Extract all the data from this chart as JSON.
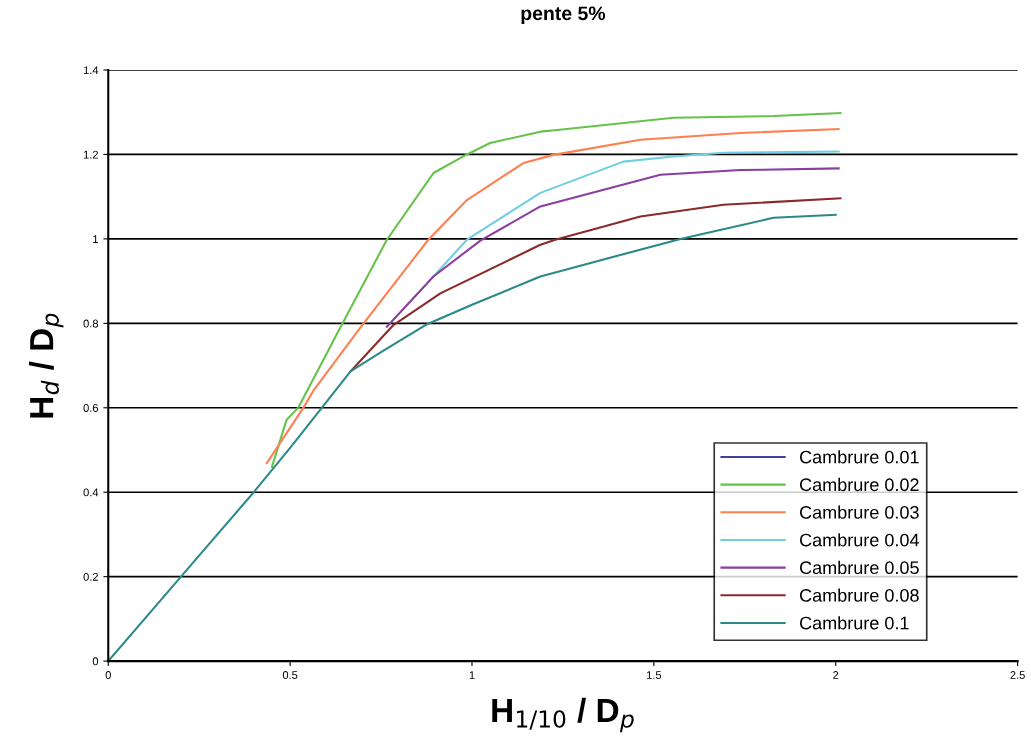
{
  "chart_data": {
    "type": "line",
    "title": "pente 5%",
    "xlabel": "H$_{1/10}$ / D$_{p}$",
    "ylabel": "H$_{d}$ / D$_{p}$",
    "xlim": [
      0,
      2.5
    ],
    "xticks": [
      0,
      0.5,
      1,
      1.5,
      2,
      2.5
    ],
    "ylim": [
      0,
      1.4
    ],
    "yticks": [
      0,
      0.2,
      0.4,
      0.6,
      0.8,
      1,
      1.2,
      1.4
    ],
    "grid": "y",
    "legend": "bottom right",
    "marker": "none",
    "line_style": "solid",
    "series": [
      {
        "name": "Cambrure 0.01",
        "color": "#3f3f9f"
      },
      {
        "name": "Cambrure 0.02",
        "color": "#66c24a",
        "x": [
          0.45,
          0.49,
          0.523,
          0.638,
          0.766,
          0.894,
          0.986,
          1.05,
          1.188,
          1.234,
          1.554,
          1.829,
          2.013
        ],
        "values": [
          0.46,
          0.571,
          0.601,
          0.79,
          0.998,
          1.156,
          1.2,
          1.227,
          1.254,
          1.258,
          1.287,
          1.291,
          1.298
        ]
      },
      {
        "name": "Cambrure 0.03",
        "color": "#ff7f50",
        "x": [
          0.436,
          0.537,
          0.565,
          0.693,
          0.88,
          0.986,
          1.142,
          1.224,
          1.463,
          1.738,
          2.008
        ],
        "values": [
          0.469,
          0.601,
          0.642,
          0.79,
          0.998,
          1.092,
          1.18,
          1.199,
          1.235,
          1.251,
          1.26
        ]
      },
      {
        "name": "Cambrure 0.04",
        "color": "#6fcfe0",
        "x": [
          0.894,
          0.986,
          1.188,
          1.416,
          1.554,
          1.691,
          2.008
        ],
        "values": [
          0.911,
          0.998,
          1.109,
          1.183,
          1.195,
          1.204,
          1.207
        ]
      },
      {
        "name": "Cambrure 0.05",
        "color": "#8a3ea0",
        "x": [
          0.766,
          0.894,
          1.023,
          1.188,
          1.518,
          1.738,
          2.008
        ],
        "values": [
          0.792,
          0.911,
          0.996,
          1.077,
          1.152,
          1.163,
          1.167
        ]
      },
      {
        "name": "Cambrure 0.08",
        "color": "#8b2a2a",
        "x": [
          0.666,
          0.784,
          0.913,
          1.188,
          1.229,
          1.463,
          1.691,
          2.013
        ],
        "values": [
          0.686,
          0.796,
          0.871,
          0.986,
          0.998,
          1.053,
          1.081,
          1.096
        ]
      },
      {
        "name": "Cambrure 0.1",
        "color": "#2a8a8a",
        "x": [
          0,
          0.1,
          0.2,
          0.3,
          0.4,
          0.5,
          0.588,
          0.666,
          0.75,
          0.872,
          1.0,
          1.188,
          1.4,
          1.573,
          1.829,
          2.0
        ],
        "values": [
          0,
          0.1,
          0.2,
          0.3,
          0.4,
          0.505,
          0.601,
          0.686,
          0.732,
          0.796,
          0.844,
          0.911,
          0.96,
          1.0,
          1.05,
          1.057
        ]
      }
    ]
  }
}
